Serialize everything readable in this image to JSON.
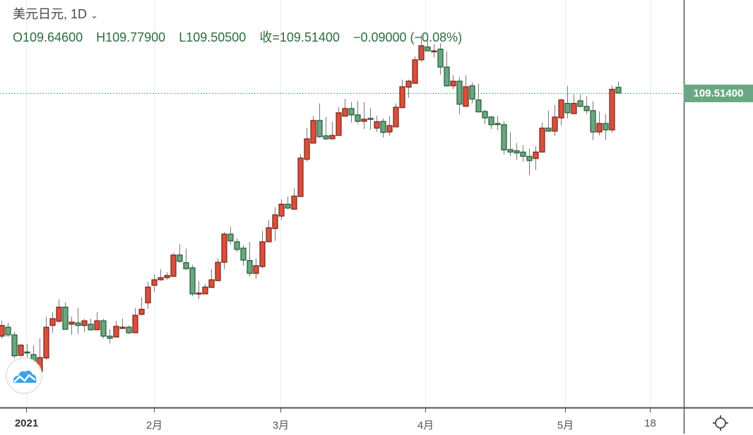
{
  "header": {
    "symbol": "美元日元, 1D",
    "open_label": "O109.64600",
    "high_label": "H109.77900",
    "low_label": "L109.50500",
    "close_label": "收=109.51400",
    "change_label": "−0.09000 (−0.08%)"
  },
  "price_tag": "109.51400",
  "colors": {
    "up": "#d9503c",
    "up_border": "#7a2016",
    "down": "#6aa67f",
    "down_border": "#1f5a35",
    "wick": "#777777",
    "grid": "#e6eef5",
    "last_price": "#6aa884"
  },
  "icons": {
    "logo": "cloud-chart-logo-icon",
    "settings": "gear-icon",
    "dropdown": "chevron-down-icon"
  },
  "chart_data": {
    "type": "candlestick",
    "title": "美元日元, 1D",
    "ylim": [
      102.15,
      111.69
    ],
    "last_price": 109.514,
    "x_ticks": [
      {
        "label": "2021",
        "index": 3.9,
        "bold": true
      },
      {
        "label": "2月",
        "index": 24
      },
      {
        "label": "3月",
        "index": 43.9
      },
      {
        "label": "4月",
        "index": 66.7
      },
      {
        "label": "5月",
        "index": 88.7
      },
      {
        "label": "18",
        "index": 102
      }
    ],
    "ohlc": [
      [
        103.82,
        104.18,
        103.77,
        104.07
      ],
      [
        104.03,
        104.13,
        103.8,
        103.85
      ],
      [
        103.85,
        103.92,
        103.31,
        103.36
      ],
      [
        103.37,
        103.64,
        103.34,
        103.61
      ],
      [
        103.45,
        103.64,
        103.27,
        103.44
      ],
      [
        103.39,
        103.61,
        103.11,
        103.19
      ],
      [
        102.99,
        103.77,
        102.99,
        103.32
      ],
      [
        103.31,
        104.27,
        103.27,
        104.03
      ],
      [
        104.07,
        104.38,
        103.9,
        104.23
      ],
      [
        104.17,
        104.68,
        104.13,
        104.5
      ],
      [
        104.5,
        104.61,
        103.98,
        103.98
      ],
      [
        104.1,
        104.28,
        103.85,
        104.15
      ],
      [
        104.13,
        104.48,
        103.87,
        104.07
      ],
      [
        104.07,
        104.22,
        103.92,
        104.18
      ],
      [
        104.1,
        104.23,
        103.94,
        103.97
      ],
      [
        103.97,
        104.38,
        103.97,
        104.18
      ],
      [
        104.18,
        104.23,
        103.77,
        103.82
      ],
      [
        103.82,
        103.98,
        103.65,
        103.77
      ],
      [
        103.8,
        104.18,
        103.8,
        104.05
      ],
      [
        104.0,
        104.23,
        104.0,
        104.03
      ],
      [
        104.03,
        104.07,
        103.87,
        103.9
      ],
      [
        103.9,
        104.48,
        103.9,
        104.31
      ],
      [
        104.33,
        104.73,
        104.31,
        104.45
      ],
      [
        104.6,
        105.09,
        104.46,
        104.97
      ],
      [
        105.01,
        105.27,
        104.86,
        105.14
      ],
      [
        105.14,
        105.39,
        105.12,
        105.19
      ],
      [
        105.19,
        105.32,
        105.14,
        105.24
      ],
      [
        105.22,
        105.77,
        105.21,
        105.72
      ],
      [
        105.72,
        105.97,
        105.54,
        105.57
      ],
      [
        105.54,
        105.87,
        105.37,
        105.4
      ],
      [
        105.42,
        105.49,
        104.76,
        104.81
      ],
      [
        104.83,
        105.11,
        104.69,
        104.83
      ],
      [
        104.81,
        105.04,
        104.81,
        104.97
      ],
      [
        104.96,
        105.39,
        104.96,
        105.14
      ],
      [
        105.12,
        105.64,
        105.12,
        105.55
      ],
      [
        105.55,
        106.26,
        105.39,
        106.21
      ],
      [
        106.21,
        106.38,
        105.97,
        106.05
      ],
      [
        106.03,
        106.11,
        105.8,
        105.85
      ],
      [
        105.88,
        105.95,
        105.47,
        105.6
      ],
      [
        105.59,
        106.03,
        105.22,
        105.29
      ],
      [
        105.29,
        105.64,
        105.16,
        105.47
      ],
      [
        105.45,
        106.29,
        105.4,
        106.03
      ],
      [
        106.03,
        106.54,
        106.03,
        106.36
      ],
      [
        106.34,
        106.84,
        106.05,
        106.66
      ],
      [
        106.63,
        107.02,
        106.54,
        106.91
      ],
      [
        106.91,
        107.09,
        106.79,
        106.82
      ],
      [
        106.79,
        107.28,
        106.79,
        107.1
      ],
      [
        107.09,
        108.08,
        107.09,
        107.99
      ],
      [
        107.96,
        108.69,
        107.91,
        108.44
      ],
      [
        108.34,
        108.98,
        108.34,
        108.87
      ],
      [
        108.87,
        109.27,
        108.46,
        108.49
      ],
      [
        108.51,
        108.95,
        108.41,
        108.44
      ],
      [
        108.44,
        108.84,
        108.44,
        108.52
      ],
      [
        108.52,
        109.18,
        108.52,
        109.05
      ],
      [
        108.97,
        109.38,
        108.97,
        109.15
      ],
      [
        109.15,
        109.3,
        108.82,
        109.0
      ],
      [
        109.0,
        109.33,
        108.8,
        108.85
      ],
      [
        108.85,
        109.3,
        108.67,
        108.9
      ],
      [
        108.92,
        109.17,
        108.65,
        108.9
      ],
      [
        108.69,
        108.98,
        108.6,
        108.84
      ],
      [
        108.85,
        108.92,
        108.47,
        108.59
      ],
      [
        108.6,
        108.98,
        108.51,
        108.75
      ],
      [
        108.72,
        109.27,
        108.72,
        109.18
      ],
      [
        109.17,
        109.83,
        109.17,
        109.66
      ],
      [
        109.65,
        109.83,
        109.4,
        109.79
      ],
      [
        109.74,
        110.37,
        109.74,
        110.29
      ],
      [
        110.29,
        110.87,
        110.24,
        110.62
      ],
      [
        110.59,
        110.77,
        110.5,
        110.5
      ],
      [
        110.5,
        110.65,
        110.34,
        110.5
      ],
      [
        110.54,
        110.68,
        109.94,
        110.12
      ],
      [
        110.12,
        110.49,
        109.66,
        109.68
      ],
      [
        109.68,
        109.93,
        109.6,
        109.79
      ],
      [
        109.79,
        109.88,
        109.02,
        109.25
      ],
      [
        109.2,
        109.93,
        109.2,
        109.66
      ],
      [
        109.68,
        109.76,
        109.27,
        109.37
      ],
      [
        109.35,
        109.73,
        109.07,
        109.07
      ],
      [
        109.08,
        109.12,
        108.79,
        108.93
      ],
      [
        108.95,
        108.98,
        108.67,
        108.77
      ],
      [
        108.8,
        108.98,
        108.64,
        108.79
      ],
      [
        108.77,
        108.85,
        108.08,
        108.18
      ],
      [
        108.19,
        108.59,
        108.04,
        108.13
      ],
      [
        108.16,
        108.34,
        107.95,
        108.11
      ],
      [
        108.13,
        108.29,
        107.9,
        108.03
      ],
      [
        108.03,
        108.21,
        107.58,
        107.93
      ],
      [
        107.98,
        108.27,
        107.71,
        108.13
      ],
      [
        108.13,
        108.82,
        108.13,
        108.69
      ],
      [
        108.69,
        109.1,
        108.6,
        108.62
      ],
      [
        108.62,
        109.23,
        108.51,
        108.95
      ],
      [
        108.93,
        109.38,
        108.75,
        109.35
      ],
      [
        109.27,
        109.68,
        108.92,
        109.05
      ],
      [
        109.03,
        109.48,
        109.02,
        109.27
      ],
      [
        109.33,
        109.48,
        109.17,
        109.2
      ],
      [
        109.2,
        109.43,
        109.02,
        109.1
      ],
      [
        109.1,
        109.32,
        108.41,
        108.6
      ],
      [
        108.6,
        109.08,
        108.52,
        108.8
      ],
      [
        108.8,
        109.02,
        108.41,
        108.65
      ],
      [
        108.65,
        109.69,
        108.59,
        109.6
      ],
      [
        109.646,
        109.779,
        109.505,
        109.514
      ]
    ]
  }
}
